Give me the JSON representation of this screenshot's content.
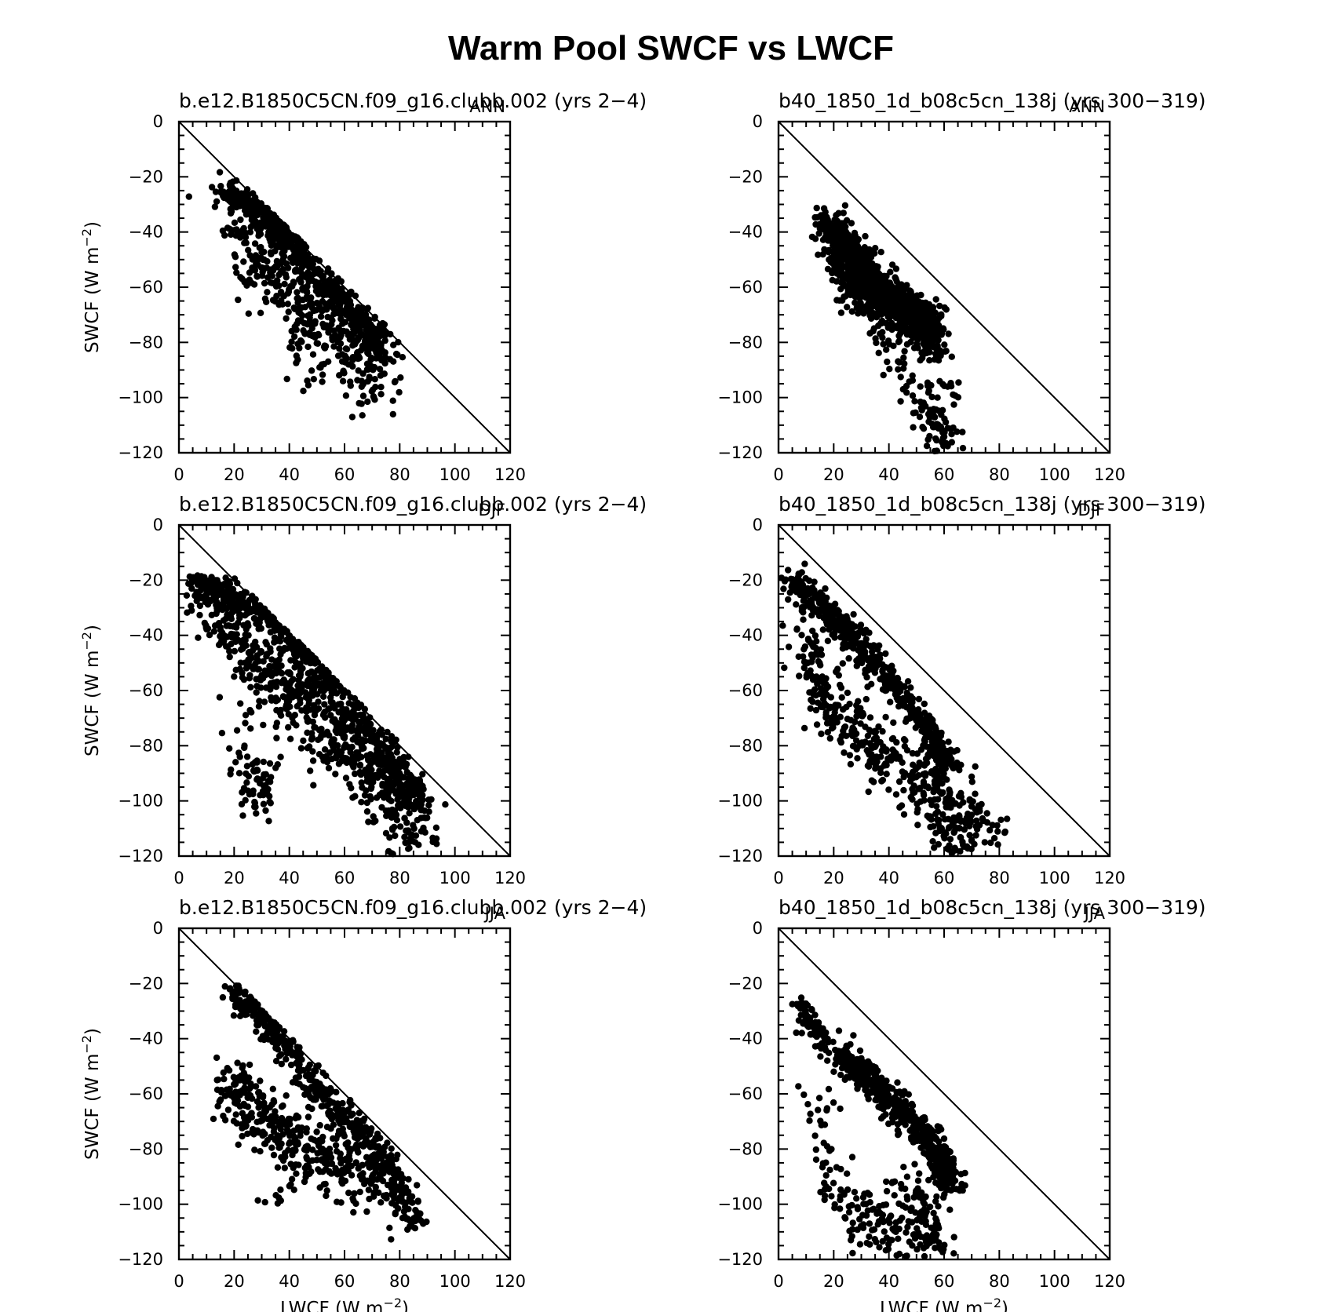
{
  "figure": {
    "title": "Warm Pool SWCF vs LWCF",
    "xlabel": "LWCF (W m",
    "ylabel": "SWCF (W m",
    "unit_exponent": "−2"
  },
  "chart_data": [
    {
      "type": "scatter",
      "title": "b.e12.B1850C5CN.f09_g16.clubb.002 (yrs 2−4)",
      "season": "ANN",
      "xlim": [
        0,
        120
      ],
      "ylim": [
        -120,
        0
      ],
      "xticks": [
        "0",
        "20",
        "40",
        "60",
        "80",
        "100",
        "120"
      ],
      "yticks": [
        "0",
        "−20",
        "−40",
        "−60",
        "−80",
        "−100",
        "−120"
      ],
      "reference_line": [
        [
          0,
          0
        ],
        [
          120,
          -120
        ]
      ],
      "clusters": [
        {
          "points": [
            [
              16,
              -26
            ],
            [
              20,
              -27
            ],
            [
              25,
              -30
            ],
            [
              30,
              -34
            ],
            [
              35,
              -39
            ],
            [
              40,
              -44
            ],
            [
              45,
              -50
            ],
            [
              50,
              -56
            ],
            [
              55,
              -61
            ],
            [
              60,
              -66
            ],
            [
              65,
              -72
            ],
            [
              70,
              -78
            ],
            [
              75,
              -86
            ]
          ],
          "spread": [
            2.5,
            2
          ],
          "count": 520
        },
        {
          "points": [
            [
              22,
              -33
            ],
            [
              28,
              -42
            ],
            [
              34,
              -52
            ],
            [
              40,
              -60
            ],
            [
              46,
              -66
            ],
            [
              52,
              -72
            ],
            [
              58,
              -78
            ],
            [
              64,
              -82
            ],
            [
              70,
              -88
            ]
          ],
          "spread": [
            6,
            9
          ],
          "count": 480
        },
        {
          "points": [
            [
              34,
              -80
            ],
            [
              45,
              -90
            ],
            [
              55,
              -97
            ],
            [
              62,
              -100
            ],
            [
              72,
              -95
            ],
            [
              78,
              -99
            ]
          ],
          "spread": [
            3,
            3
          ],
          "count": 22
        }
      ]
    },
    {
      "type": "scatter",
      "title": "b40_1850_1d_b08c5cn_138j (yrs 300−319)",
      "season": "ANN",
      "xlim": [
        0,
        120
      ],
      "ylim": [
        -120,
        0
      ],
      "xticks": [
        "0",
        "20",
        "40",
        "60",
        "80",
        "100",
        "120"
      ],
      "yticks": [
        "0",
        "−20",
        "−40",
        "−60",
        "−80",
        "−100",
        "−120"
      ],
      "reference_line": [
        [
          0,
          0
        ],
        [
          120,
          -120
        ]
      ],
      "clusters": [
        {
          "points": [
            [
              17,
              -36
            ],
            [
              22,
              -42
            ],
            [
              28,
              -49
            ],
            [
              34,
              -56
            ],
            [
              40,
              -62
            ],
            [
              46,
              -67
            ],
            [
              52,
              -71
            ],
            [
              56,
              -76
            ]
          ],
          "spread": [
            2.5,
            3
          ],
          "count": 650
        },
        {
          "points": [
            [
              20,
              -46
            ],
            [
              25,
              -55
            ],
            [
              30,
              -61
            ],
            [
              36,
              -64
            ],
            [
              42,
              -68
            ],
            [
              48,
              -72
            ],
            [
              54,
              -76
            ],
            [
              57,
              -82
            ]
          ],
          "spread": [
            3,
            4
          ],
          "count": 550
        },
        {
          "points": [
            [
              36,
              -78
            ],
            [
              44,
              -88
            ],
            [
              50,
              -98
            ],
            [
              55,
              -106
            ],
            [
              58,
              -113
            ],
            [
              60,
              -118
            ],
            [
              63,
              -95
            ]
          ],
          "spread": [
            3.5,
            5
          ],
          "count": 130
        }
      ]
    },
    {
      "type": "scatter",
      "title": "b.e12.B1850C5CN.f09_g16.clubb.002 (yrs 2−4)",
      "season": "DJF",
      "xlim": [
        0,
        120
      ],
      "ylim": [
        -120,
        0
      ],
      "xticks": [
        "0",
        "20",
        "40",
        "60",
        "80",
        "100",
        "120"
      ],
      "yticks": [
        "0",
        "−20",
        "−40",
        "−60",
        "−80",
        "−100",
        "−120"
      ],
      "reference_line": [
        [
          0,
          0
        ],
        [
          120,
          -120
        ]
      ],
      "clusters": [
        {
          "points": [
            [
              6,
              -22
            ],
            [
              12,
              -23
            ],
            [
              20,
              -26
            ],
            [
              28,
              -31
            ],
            [
              36,
              -37
            ],
            [
              44,
              -45
            ],
            [
              52,
              -55
            ],
            [
              60,
              -65
            ],
            [
              68,
              -75
            ],
            [
              76,
              -84
            ],
            [
              82,
              -92
            ],
            [
              87,
              -102
            ]
          ],
          "spread": [
            2.5,
            2.5
          ],
          "count": 560
        },
        {
          "points": [
            [
              10,
              -26
            ],
            [
              18,
              -34
            ],
            [
              26,
              -44
            ],
            [
              34,
              -54
            ],
            [
              42,
              -62
            ],
            [
              50,
              -70
            ],
            [
              58,
              -78
            ],
            [
              66,
              -86
            ],
            [
              74,
              -94
            ],
            [
              82,
              -104
            ],
            [
              86,
              -115
            ]
          ],
          "spread": [
            5,
            6
          ],
          "count": 650
        },
        {
          "points": [
            [
              22,
              -66
            ],
            [
              24,
              -80
            ],
            [
              26,
              -92
            ],
            [
              26,
              -104
            ],
            [
              30,
              -88
            ],
            [
              34,
              -94
            ],
            [
              16,
              -79
            ]
          ],
          "spread": [
            3,
            5
          ],
          "count": 75
        }
      ]
    },
    {
      "type": "scatter",
      "title": "b40_1850_1d_b08c5cn_138j (yrs 300−319)",
      "season": "DJF",
      "xlim": [
        0,
        120
      ],
      "ylim": [
        -120,
        0
      ],
      "xticks": [
        "0",
        "20",
        "40",
        "60",
        "80",
        "100",
        "120"
      ],
      "yticks": [
        "0",
        "−20",
        "−40",
        "−60",
        "−80",
        "−100",
        "−120"
      ],
      "reference_line": [
        [
          0,
          0
        ],
        [
          120,
          -120
        ]
      ],
      "clusters": [
        {
          "points": [
            [
              5,
              -21
            ],
            [
              10,
              -25
            ],
            [
              16,
              -30
            ],
            [
              22,
              -36
            ],
            [
              28,
              -42
            ],
            [
              34,
              -49
            ],
            [
              40,
              -56
            ],
            [
              46,
              -64
            ],
            [
              52,
              -72
            ],
            [
              58,
              -80
            ],
            [
              62,
              -88
            ]
          ],
          "spread": [
            2,
            2.5
          ],
          "count": 520
        },
        {
          "points": [
            [
              10,
              -40
            ],
            [
              14,
              -55
            ],
            [
              18,
              -65
            ],
            [
              24,
              -72
            ],
            [
              30,
              -78
            ],
            [
              36,
              -82
            ],
            [
              42,
              -86
            ],
            [
              48,
              -90
            ],
            [
              54,
              -94
            ],
            [
              60,
              -100
            ],
            [
              66,
              -104
            ],
            [
              72,
              -106
            ],
            [
              78,
              -110
            ]
          ],
          "spread": [
            4,
            6
          ],
          "count": 420
        },
        {
          "points": [
            [
              55,
              -106
            ],
            [
              58,
              -112
            ],
            [
              62,
              -116
            ],
            [
              66,
              -118
            ]
          ],
          "spread": [
            3,
            3
          ],
          "count": 40
        }
      ]
    },
    {
      "type": "scatter",
      "title": "b.e12.B1850C5CN.f09_g16.clubb.002 (yrs 2−4)",
      "season": "JJA",
      "xlim": [
        0,
        120
      ],
      "ylim": [
        -120,
        0
      ],
      "xticks": [
        "0",
        "20",
        "40",
        "60",
        "80",
        "100",
        "120"
      ],
      "yticks": [
        "0",
        "−20",
        "−40",
        "−60",
        "−80",
        "−100",
        "−120"
      ],
      "reference_line": [
        [
          0,
          0
        ],
        [
          120,
          -120
        ]
      ],
      "clusters": [
        {
          "points": [
            [
              21,
              -24
            ],
            [
              26,
              -28
            ],
            [
              32,
              -34
            ],
            [
              38,
              -42
            ],
            [
              44,
              -50
            ],
            [
              50,
              -58
            ],
            [
              56,
              -64
            ],
            [
              62,
              -70
            ],
            [
              68,
              -77
            ],
            [
              74,
              -85
            ],
            [
              80,
              -95
            ],
            [
              85,
              -108
            ]
          ],
          "spread": [
            2.5,
            2.5
          ],
          "count": 480
        },
        {
          "points": [
            [
              17,
              -55
            ],
            [
              22,
              -62
            ],
            [
              26,
              -66
            ],
            [
              32,
              -70
            ],
            [
              38,
              -75
            ],
            [
              44,
              -80
            ],
            [
              50,
              -82
            ],
            [
              56,
              -84
            ],
            [
              62,
              -88
            ],
            [
              68,
              -92
            ],
            [
              74,
              -98
            ]
          ],
          "spread": [
            4.5,
            6
          ],
          "count": 400
        },
        {
          "points": [
            [
              28,
              -95
            ],
            [
              33,
              -99
            ],
            [
              36,
              -98
            ],
            [
              44,
              -90
            ]
          ],
          "spread": [
            2,
            2
          ],
          "count": 10
        }
      ]
    },
    {
      "type": "scatter",
      "title": "b40_1850_1d_b08c5cn_138j (yrs 300−319)",
      "season": "JJA",
      "xlim": [
        0,
        120
      ],
      "ylim": [
        -120,
        0
      ],
      "xticks": [
        "0",
        "20",
        "40",
        "60",
        "80",
        "100",
        "120"
      ],
      "yticks": [
        "0",
        "−20",
        "−40",
        "−60",
        "−80",
        "−100",
        "−120"
      ],
      "reference_line": [
        [
          0,
          0
        ],
        [
          120,
          -120
        ]
      ],
      "clusters": [
        {
          "points": [
            [
              8,
              -28
            ],
            [
              11,
              -34
            ],
            [
              14,
              -38
            ],
            [
              18,
              -41
            ]
          ],
          "spread": [
            1.8,
            2.5
          ],
          "count": 80
        },
        {
          "points": [
            [
              22,
              -46
            ],
            [
              28,
              -50
            ],
            [
              34,
              -56
            ],
            [
              40,
              -62
            ],
            [
              46,
              -68
            ],
            [
              52,
              -74
            ],
            [
              56,
              -80
            ],
            [
              60,
              -86
            ],
            [
              62,
              -94
            ]
          ],
          "spread": [
            2.5,
            2.5
          ],
          "count": 520
        },
        {
          "points": [
            [
              12,
              -60
            ],
            [
              18,
              -85
            ],
            [
              24,
              -100
            ],
            [
              30,
              -106
            ],
            [
              38,
              -104
            ],
            [
              44,
              -108
            ],
            [
              50,
              -110
            ],
            [
              56,
              -114
            ],
            [
              60,
              -112
            ],
            [
              46,
              -96
            ],
            [
              56,
              -100
            ]
          ],
          "spread": [
            4,
            6
          ],
          "count": 240
        }
      ]
    }
  ]
}
